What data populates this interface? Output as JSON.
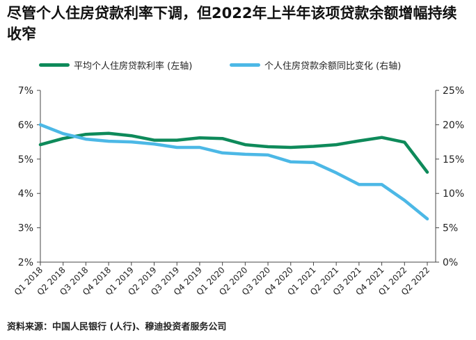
{
  "title": "尽管个人住房贷款利率下调，但2022年上半年该项贷款余额增幅持续收窄",
  "source": "资料来源：中国人民银行 (人行)、穆迪投资者服务公司",
  "chart_data": {
    "type": "line",
    "categories": [
      "Q1 2018",
      "Q2 2018",
      "Q3 2018",
      "Q4 2018",
      "Q1 2019",
      "Q2 2019",
      "Q3 2019",
      "Q4 2019",
      "Q1 2020",
      "Q2 2020",
      "Q3 2020",
      "Q4 2020",
      "Q1 2021",
      "Q2 2021",
      "Q3 2021",
      "Q4 2021",
      "Q1 2022",
      "Q2 2022"
    ],
    "left_axis": {
      "min": 2,
      "max": 7,
      "ticks": [
        "2%",
        "3%",
        "4%",
        "5%",
        "6%",
        "7%"
      ],
      "tick_values": [
        2,
        3,
        4,
        5,
        6,
        7
      ]
    },
    "right_axis": {
      "min": 0,
      "max": 25,
      "ticks": [
        "0%",
        "5%",
        "10%",
        "15%",
        "20%",
        "25%"
      ],
      "tick_values": [
        0,
        5,
        10,
        15,
        20,
        25
      ]
    },
    "series": [
      {
        "name": "平均个人住房贷款利率 (左轴)",
        "axis": "left",
        "color": "#0e8a5a",
        "values": [
          5.42,
          5.6,
          5.72,
          5.75,
          5.68,
          5.55,
          5.55,
          5.62,
          5.6,
          5.42,
          5.36,
          5.34,
          5.37,
          5.42,
          5.53,
          5.63,
          5.49,
          4.62
        ]
      },
      {
        "name": "个人住房贷款余额同比变化 (右轴)",
        "axis": "right",
        "color": "#4cb8e6",
        "values": [
          20.0,
          18.7,
          17.9,
          17.6,
          17.5,
          17.2,
          16.7,
          16.7,
          15.9,
          15.7,
          15.6,
          14.6,
          14.5,
          13.0,
          11.3,
          11.3,
          9.0,
          6.3
        ]
      }
    ],
    "grid": false,
    "legend_position": "top"
  }
}
